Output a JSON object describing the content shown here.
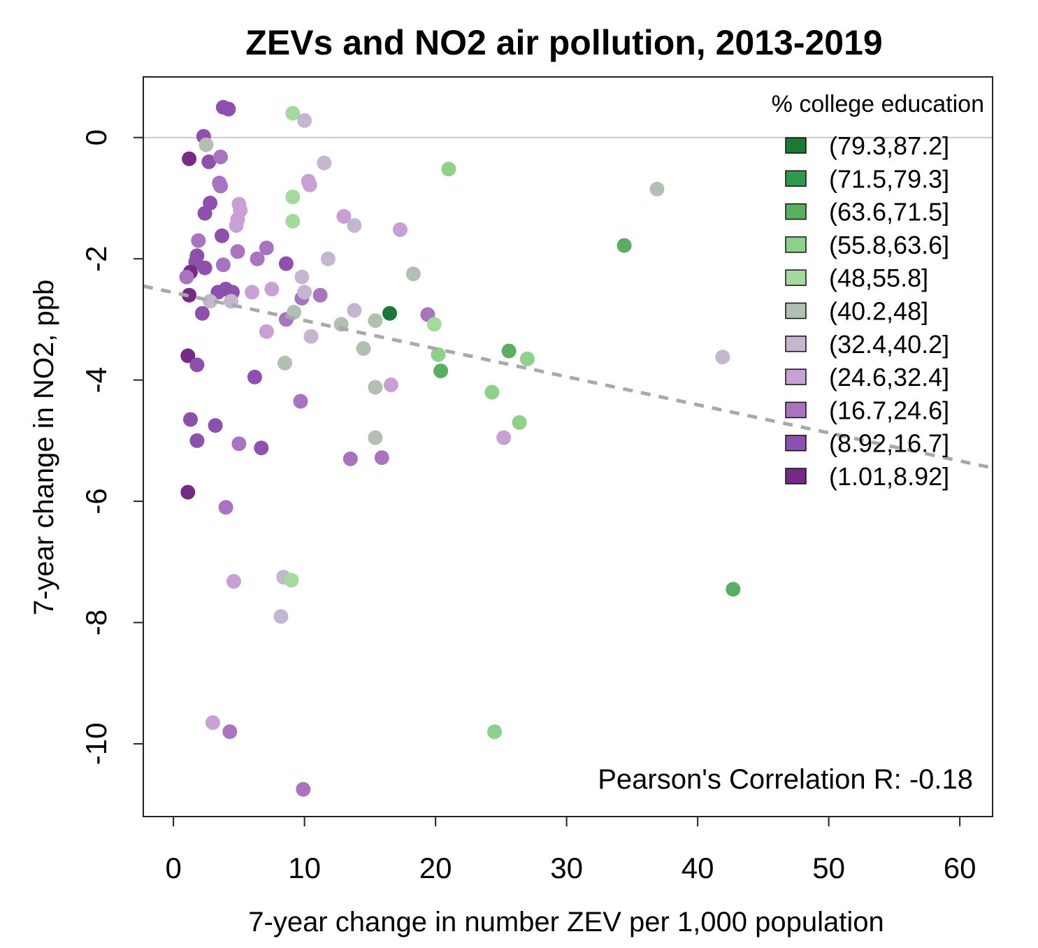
{
  "chart_data": {
    "type": "scatter",
    "title": "ZEVs and NO2 air pollution, 2013-2019",
    "xlabel": "7-year change in number ZEV per 1,000 population",
    "ylabel": "7-year change in NO2, ppb",
    "xlim": [
      -2.3,
      62.5
    ],
    "ylim": [
      -11.2,
      1.0
    ],
    "x_ticks": [
      0,
      10,
      20,
      30,
      40,
      50,
      60
    ],
    "y_ticks": [
      0,
      -2,
      -4,
      -6,
      -8,
      -10
    ],
    "x_tick_labels": [
      "0",
      "10",
      "20",
      "30",
      "40",
      "50",
      "60"
    ],
    "y_tick_labels": [
      "0",
      "-2",
      "-4",
      "-6",
      "-8",
      "-10"
    ],
    "reference_line_y": 0,
    "trend_line": {
      "x": [
        -2.3,
        62.5
      ],
      "y": [
        -2.45,
        -5.45
      ]
    },
    "annotation": "Pearson's Correlation R: -0.18",
    "legend": {
      "title": "% college education",
      "position": "top-right",
      "entries": [
        {
          "label": "(79.3,87.2]",
          "color": "#1b7837"
        },
        {
          "label": "(71.5,79.3]",
          "color": "#2e9a4c"
        },
        {
          "label": "(63.6,71.5]",
          "color": "#5aae61"
        },
        {
          "label": "(55.8,63.6]",
          "color": "#8fd18a"
        },
        {
          "label": "(48,55.8]",
          "color": "#a6d9a0"
        },
        {
          "label": "(40.2,48]",
          "color": "#b3bfb3"
        },
        {
          "label": "(32.4,40.2]",
          "color": "#c4b6cf"
        },
        {
          "label": "(24.6,32.4]",
          "color": "#c9a0d6"
        },
        {
          "label": "(16.7,24.6]",
          "color": "#a874bf"
        },
        {
          "label": "(8.92,16.7]",
          "color": "#8e50ad"
        },
        {
          "label": "(1.01,8.92]",
          "color": "#762a83"
        }
      ]
    },
    "points": [
      {
        "x": 3.8,
        "y": 0.5,
        "g": 9
      },
      {
        "x": 4.2,
        "y": 0.47,
        "g": 9
      },
      {
        "x": 2.3,
        "y": 0.02,
        "g": 9
      },
      {
        "x": 1.2,
        "y": -0.35,
        "g": 10
      },
      {
        "x": 2.7,
        "y": -0.4,
        "g": 9
      },
      {
        "x": 3.6,
        "y": -0.32,
        "g": 8
      },
      {
        "x": 2.5,
        "y": -0.12,
        "g": 5
      },
      {
        "x": 3.5,
        "y": -0.75,
        "g": 8
      },
      {
        "x": 3.6,
        "y": -0.8,
        "g": 8
      },
      {
        "x": 2.8,
        "y": -1.08,
        "g": 9
      },
      {
        "x": 2.4,
        "y": -1.25,
        "g": 9
      },
      {
        "x": 5.0,
        "y": -1.1,
        "g": 7
      },
      {
        "x": 5.1,
        "y": -1.2,
        "g": 7
      },
      {
        "x": 4.9,
        "y": -1.35,
        "g": 7
      },
      {
        "x": 4.8,
        "y": -1.45,
        "g": 7
      },
      {
        "x": 3.7,
        "y": -1.62,
        "g": 9
      },
      {
        "x": 1.9,
        "y": -1.7,
        "g": 8
      },
      {
        "x": 4.9,
        "y": -1.88,
        "g": 8
      },
      {
        "x": 7.1,
        "y": -1.82,
        "g": 8
      },
      {
        "x": 1.8,
        "y": -1.95,
        "g": 9
      },
      {
        "x": 1.7,
        "y": -2.05,
        "g": 9
      },
      {
        "x": 6.4,
        "y": -2.0,
        "g": 8
      },
      {
        "x": 3.8,
        "y": -2.1,
        "g": 8
      },
      {
        "x": 2.4,
        "y": -2.15,
        "g": 9
      },
      {
        "x": 1.3,
        "y": -2.22,
        "g": 10
      },
      {
        "x": 1.0,
        "y": -2.3,
        "g": 8
      },
      {
        "x": 8.6,
        "y": -2.08,
        "g": 9
      },
      {
        "x": 1.2,
        "y": -2.6,
        "g": 10
      },
      {
        "x": 3.4,
        "y": -2.55,
        "g": 9
      },
      {
        "x": 4.0,
        "y": -2.5,
        "g": 9
      },
      {
        "x": 4.5,
        "y": -2.55,
        "g": 9
      },
      {
        "x": 4.4,
        "y": -2.7,
        "g": 6
      },
      {
        "x": 2.2,
        "y": -2.9,
        "g": 9
      },
      {
        "x": 6.0,
        "y": -2.55,
        "g": 7
      },
      {
        "x": 7.5,
        "y": -2.5,
        "g": 7
      },
      {
        "x": 2.8,
        "y": -2.7,
        "g": 6
      },
      {
        "x": 7.1,
        "y": -3.2,
        "g": 7
      },
      {
        "x": 8.6,
        "y": -3.0,
        "g": 8
      },
      {
        "x": 9.8,
        "y": -2.65,
        "g": 8
      },
      {
        "x": 11.2,
        "y": -2.6,
        "g": 8
      },
      {
        "x": 9.8,
        "y": -2.3,
        "g": 6
      },
      {
        "x": 10.0,
        "y": -2.55,
        "g": 6
      },
      {
        "x": 9.2,
        "y": -2.88,
        "g": 5
      },
      {
        "x": 10.5,
        "y": -3.28,
        "g": 6
      },
      {
        "x": 1.1,
        "y": -3.6,
        "g": 10
      },
      {
        "x": 1.8,
        "y": -3.75,
        "g": 9
      },
      {
        "x": 6.2,
        "y": -3.95,
        "g": 9
      },
      {
        "x": 8.5,
        "y": -3.72,
        "g": 5
      },
      {
        "x": 9.7,
        "y": -4.35,
        "g": 8
      },
      {
        "x": 1.3,
        "y": -4.65,
        "g": 9
      },
      {
        "x": 3.2,
        "y": -4.75,
        "g": 9
      },
      {
        "x": 1.8,
        "y": -5.0,
        "g": 9
      },
      {
        "x": 5.0,
        "y": -5.05,
        "g": 8
      },
      {
        "x": 6.7,
        "y": -5.12,
        "g": 9
      },
      {
        "x": 1.1,
        "y": -5.85,
        "g": 10
      },
      {
        "x": 4.0,
        "y": -6.1,
        "g": 8
      },
      {
        "x": 4.6,
        "y": -7.32,
        "g": 7
      },
      {
        "x": 8.4,
        "y": -7.25,
        "g": 6
      },
      {
        "x": 9.0,
        "y": -7.3,
        "g": 4
      },
      {
        "x": 8.2,
        "y": -7.9,
        "g": 6
      },
      {
        "x": 3.0,
        "y": -9.65,
        "g": 7
      },
      {
        "x": 4.3,
        "y": -9.8,
        "g": 8
      },
      {
        "x": 9.9,
        "y": -10.75,
        "g": 8
      },
      {
        "x": 9.1,
        "y": 0.4,
        "g": 4
      },
      {
        "x": 10.0,
        "y": 0.28,
        "g": 6
      },
      {
        "x": 11.5,
        "y": -0.42,
        "g": 6
      },
      {
        "x": 10.3,
        "y": -0.72,
        "g": 7
      },
      {
        "x": 10.4,
        "y": -0.78,
        "g": 7
      },
      {
        "x": 9.1,
        "y": -0.98,
        "g": 4
      },
      {
        "x": 9.1,
        "y": -1.38,
        "g": 4
      },
      {
        "x": 13.0,
        "y": -1.3,
        "g": 7
      },
      {
        "x": 13.8,
        "y": -1.45,
        "g": 6
      },
      {
        "x": 17.3,
        "y": -1.52,
        "g": 7
      },
      {
        "x": 11.8,
        "y": -2.0,
        "g": 6
      },
      {
        "x": 18.3,
        "y": -2.25,
        "g": 5
      },
      {
        "x": 13.8,
        "y": -2.85,
        "g": 6
      },
      {
        "x": 12.8,
        "y": -3.08,
        "g": 5
      },
      {
        "x": 15.4,
        "y": -3.02,
        "g": 5
      },
      {
        "x": 16.5,
        "y": -2.9,
        "g": 0
      },
      {
        "x": 19.4,
        "y": -2.92,
        "g": 8
      },
      {
        "x": 19.9,
        "y": -3.08,
        "g": 4
      },
      {
        "x": 14.5,
        "y": -3.48,
        "g": 5
      },
      {
        "x": 20.2,
        "y": -3.58,
        "g": 3
      },
      {
        "x": 20.4,
        "y": -3.85,
        "g": 2
      },
      {
        "x": 16.6,
        "y": -4.08,
        "g": 7
      },
      {
        "x": 15.4,
        "y": -4.12,
        "g": 5
      },
      {
        "x": 15.4,
        "y": -4.95,
        "g": 5
      },
      {
        "x": 13.5,
        "y": -5.3,
        "g": 8
      },
      {
        "x": 15.9,
        "y": -5.28,
        "g": 8
      },
      {
        "x": 21.0,
        "y": -0.52,
        "g": 3
      },
      {
        "x": 25.6,
        "y": -3.52,
        "g": 2
      },
      {
        "x": 27.0,
        "y": -3.65,
        "g": 3
      },
      {
        "x": 24.3,
        "y": -4.2,
        "g": 3
      },
      {
        "x": 26.4,
        "y": -4.7,
        "g": 3
      },
      {
        "x": 25.2,
        "y": -4.95,
        "g": 7
      },
      {
        "x": 34.4,
        "y": -1.78,
        "g": 2
      },
      {
        "x": 36.9,
        "y": -0.85,
        "g": 5
      },
      {
        "x": 41.9,
        "y": -3.62,
        "g": 6
      },
      {
        "x": 42.7,
        "y": -7.45,
        "g": 2
      },
      {
        "x": 24.5,
        "y": -9.8,
        "g": 3
      }
    ]
  }
}
